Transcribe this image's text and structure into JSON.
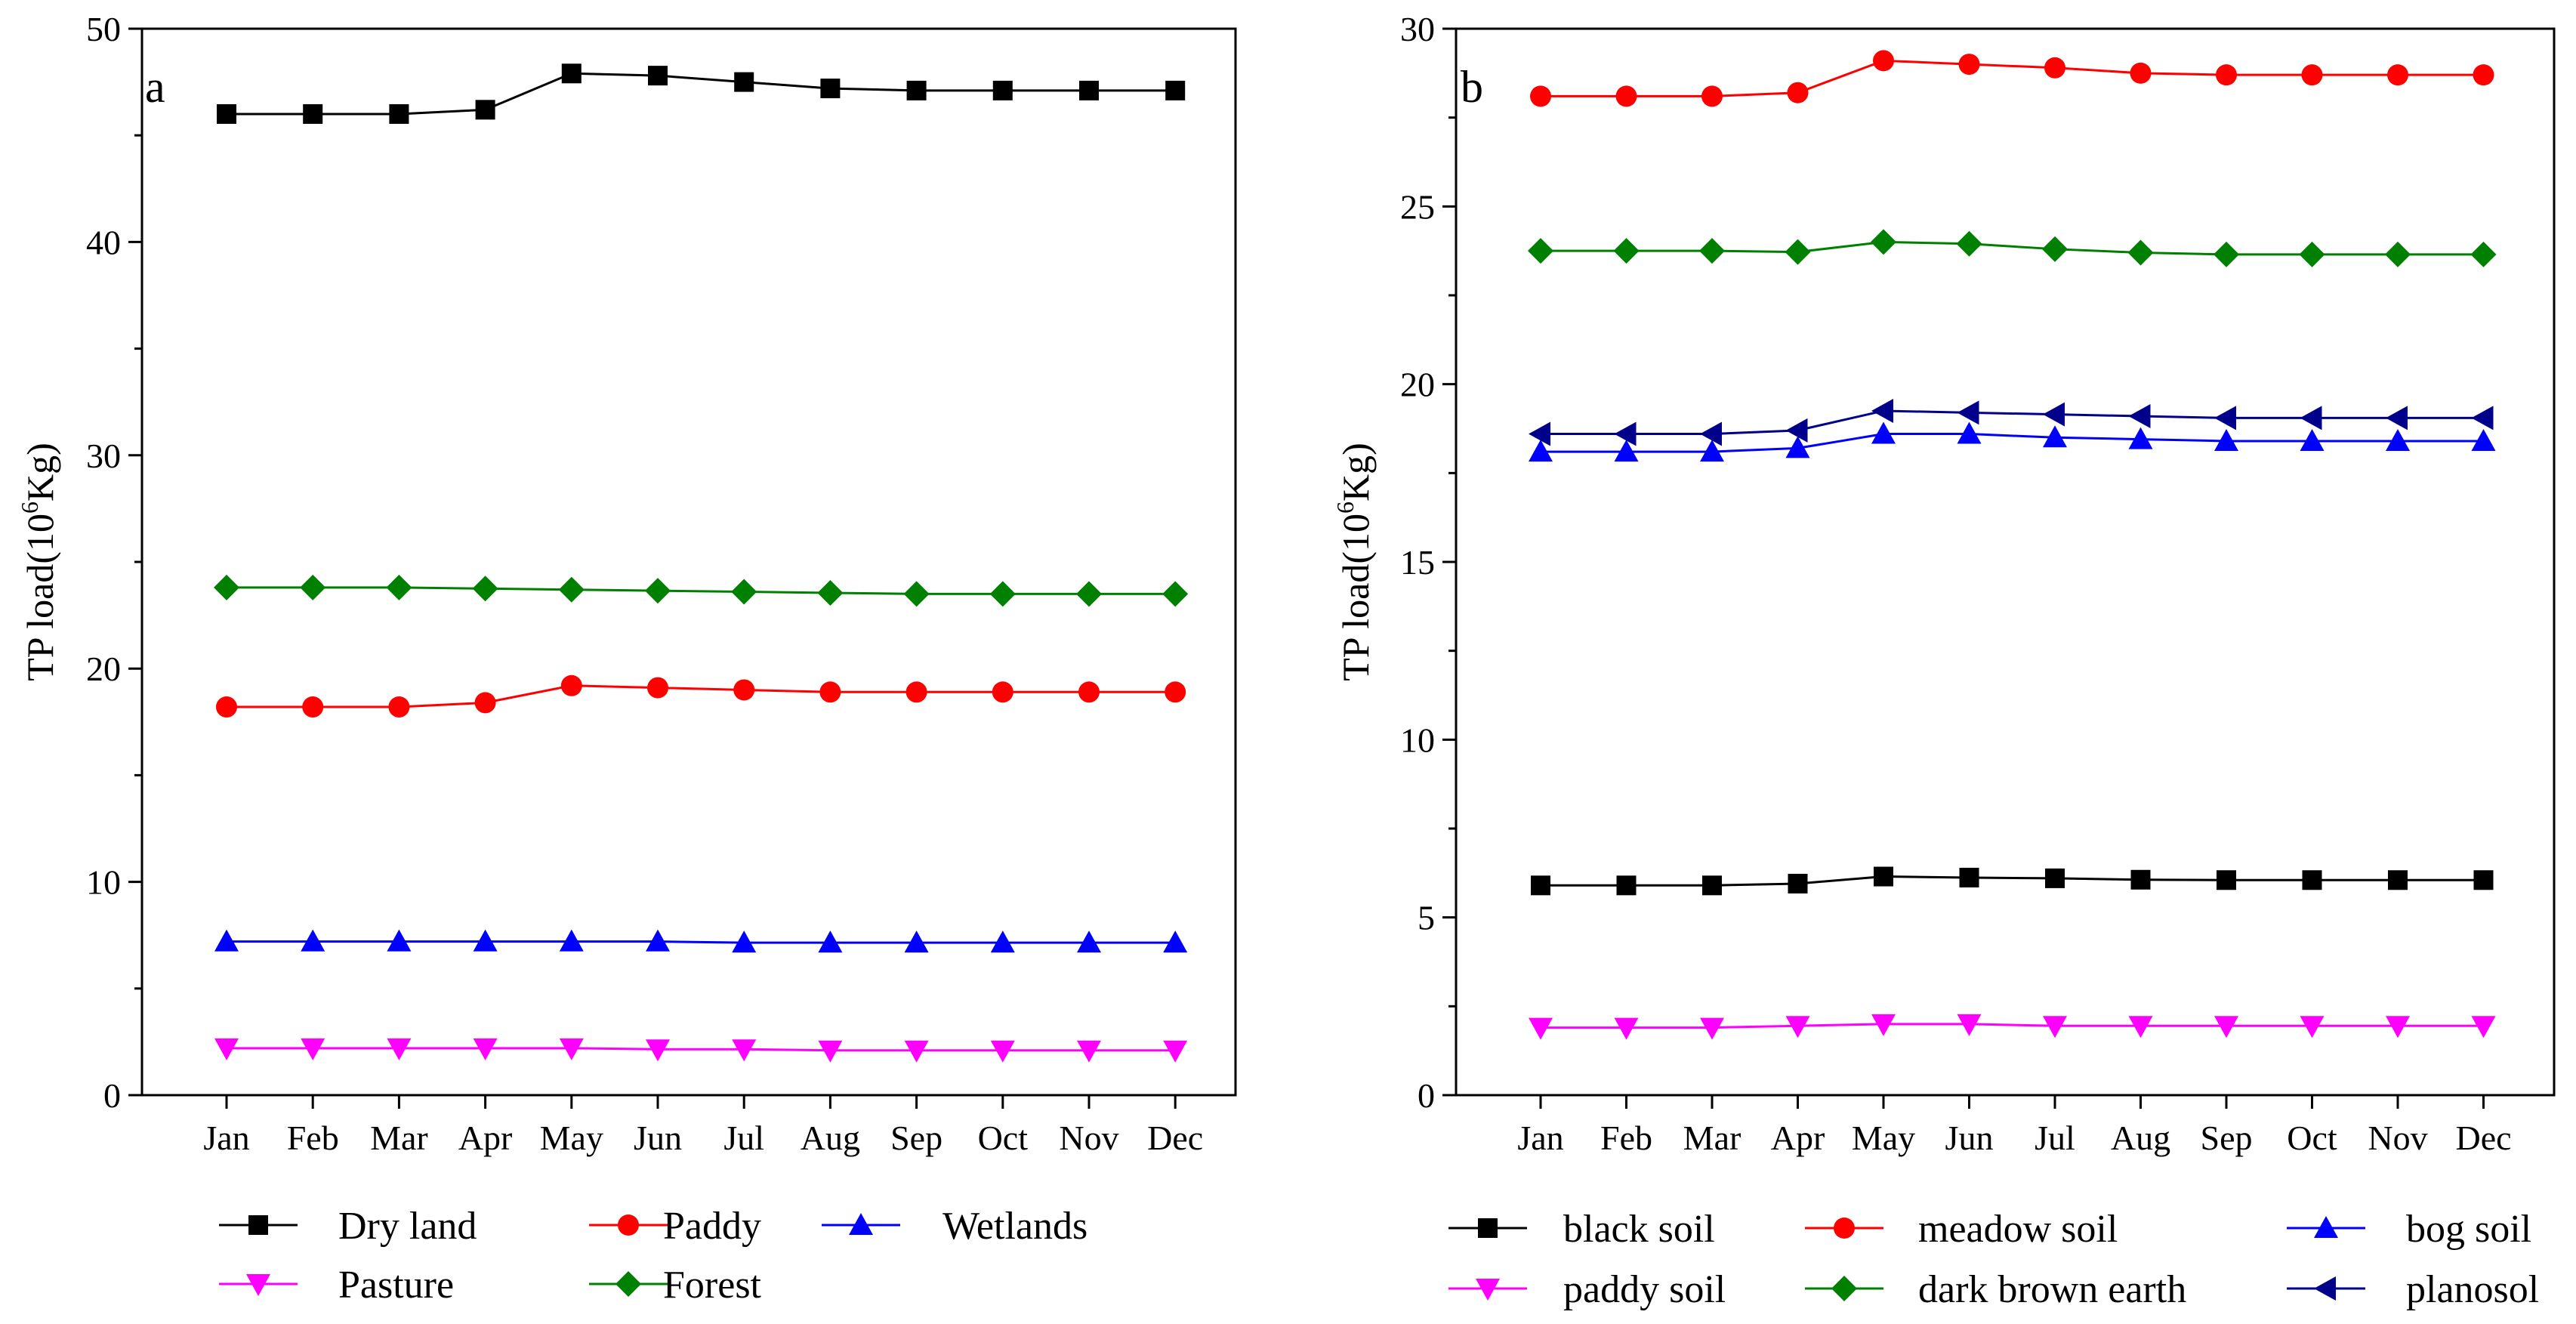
{
  "chart_data": [
    {
      "type": "line",
      "panel_label": "a",
      "title": "",
      "xlabel": "",
      "ylabel_main": "TP load(10",
      "ylabel_sup": "6",
      "ylabel_unit": "Kg)",
      "categories": [
        "Jan",
        "Feb",
        "Mar",
        "Apr",
        "May",
        "Jun",
        "Jul",
        "Aug",
        "Sep",
        "Oct",
        "Nov",
        "Dec"
      ],
      "ylim": [
        0,
        50
      ],
      "yticks": [
        0,
        10,
        20,
        30,
        40,
        50
      ],
      "grid": false,
      "legend_position": "bottom",
      "series": [
        {
          "name": "Dry land",
          "color": "#000000",
          "marker": "square",
          "values": [
            46.0,
            46.0,
            46.0,
            46.2,
            47.9,
            47.8,
            47.5,
            47.2,
            47.1,
            47.1,
            47.1,
            47.1
          ]
        },
        {
          "name": "Paddy",
          "color": "#ff0000",
          "marker": "circle",
          "values": [
            18.2,
            18.2,
            18.2,
            18.4,
            19.2,
            19.1,
            19.0,
            18.9,
            18.9,
            18.9,
            18.9,
            18.9
          ]
        },
        {
          "name": "Wetlands",
          "color": "#0000ff",
          "marker": "triangle-up",
          "values": [
            7.2,
            7.2,
            7.2,
            7.2,
            7.2,
            7.2,
            7.15,
            7.15,
            7.15,
            7.15,
            7.15,
            7.15
          ]
        },
        {
          "name": "Pasture",
          "color": "#ff00ff",
          "marker": "triangle-down",
          "values": [
            2.2,
            2.2,
            2.2,
            2.2,
            2.2,
            2.15,
            2.15,
            2.1,
            2.1,
            2.1,
            2.1,
            2.1
          ]
        },
        {
          "name": "Forest",
          "color": "#008000",
          "marker": "diamond",
          "values": [
            23.8,
            23.8,
            23.8,
            23.75,
            23.7,
            23.65,
            23.6,
            23.55,
            23.5,
            23.5,
            23.5,
            23.5
          ]
        }
      ]
    },
    {
      "type": "line",
      "panel_label": "b",
      "title": "",
      "xlabel": "",
      "ylabel_main": "TP load(10",
      "ylabel_sup": "6",
      "ylabel_unit": "Kg)",
      "categories": [
        "Jan",
        "Feb",
        "Mar",
        "Apr",
        "May",
        "Jun",
        "Jul",
        "Aug",
        "Sep",
        "Oct",
        "Nov",
        "Dec"
      ],
      "ylim": [
        0,
        30
      ],
      "yticks": [
        0,
        5,
        10,
        15,
        20,
        25,
        30
      ],
      "grid": false,
      "legend_position": "bottom",
      "series": [
        {
          "name": "black soil",
          "color": "#000000",
          "marker": "square",
          "values": [
            5.9,
            5.9,
            5.9,
            5.95,
            6.15,
            6.12,
            6.1,
            6.06,
            6.05,
            6.05,
            6.05,
            6.05
          ]
        },
        {
          "name": "meadow soil",
          "color": "#ff0000",
          "marker": "circle",
          "values": [
            28.1,
            28.1,
            28.1,
            28.2,
            29.1,
            29.0,
            28.9,
            28.75,
            28.7,
            28.7,
            28.7,
            28.7
          ]
        },
        {
          "name": "bog soil",
          "color": "#0000ff",
          "marker": "triangle-up",
          "values": [
            18.1,
            18.1,
            18.1,
            18.2,
            18.6,
            18.6,
            18.5,
            18.45,
            18.4,
            18.4,
            18.4,
            18.4
          ]
        },
        {
          "name": "paddy soil",
          "color": "#ff00ff",
          "marker": "triangle-down",
          "values": [
            1.9,
            1.9,
            1.9,
            1.95,
            2.0,
            2.0,
            1.95,
            1.95,
            1.95,
            1.95,
            1.95,
            1.95
          ]
        },
        {
          "name": "dark brown earth",
          "color": "#008000",
          "marker": "diamond",
          "values": [
            23.75,
            23.75,
            23.75,
            23.72,
            24.0,
            23.95,
            23.8,
            23.7,
            23.65,
            23.65,
            23.65,
            23.65
          ]
        },
        {
          "name": "planosol",
          "color": "#00008b",
          "marker": "triangle-left",
          "values": [
            18.6,
            18.6,
            18.6,
            18.7,
            19.25,
            19.2,
            19.15,
            19.1,
            19.05,
            19.05,
            19.05,
            19.05
          ]
        }
      ]
    }
  ]
}
